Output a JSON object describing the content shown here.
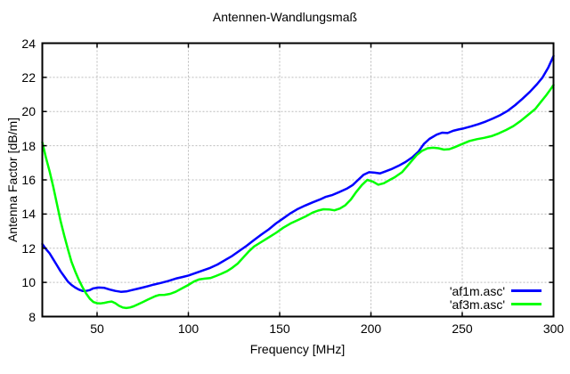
{
  "title": "Antennen-Wandlungsmaß",
  "axes": {
    "x": {
      "label": "Frequency [MHz]",
      "min": 20,
      "max": 300,
      "ticks": [
        50,
        100,
        150,
        200,
        250,
        300
      ]
    },
    "y": {
      "label": "Antenna Factor [dB/m]",
      "min": 8,
      "max": 24,
      "ticks": [
        8,
        10,
        12,
        14,
        16,
        18,
        20,
        22,
        24
      ]
    }
  },
  "legend": [
    {
      "label": "'af1m.asc'",
      "color": "#0000ff"
    },
    {
      "label": "'af3m.asc'",
      "color": "#00ff00"
    }
  ],
  "colors": {
    "background": "#ffffff",
    "grid": "#bcbcbc",
    "border": "#000000",
    "series1": "#0000ff",
    "series2": "#00ff00"
  },
  "chart_data": {
    "type": "line",
    "title": "Antennen-Wandlungsmaß",
    "xlabel": "Frequency [MHz]",
    "ylabel": "Antenna Factor [dB/m]",
    "xlim": [
      20,
      300
    ],
    "ylim": [
      8,
      24
    ],
    "grid": true,
    "legend_position": "bottom-right-inside",
    "series": [
      {
        "name": "'af1m.asc'",
        "color": "#0000ff",
        "points": [
          [
            20,
            12.25
          ],
          [
            22,
            11.95
          ],
          [
            24,
            11.7
          ],
          [
            26,
            11.35
          ],
          [
            28,
            11.0
          ],
          [
            30,
            10.65
          ],
          [
            32,
            10.35
          ],
          [
            34,
            10.05
          ],
          [
            36,
            9.85
          ],
          [
            38,
            9.7
          ],
          [
            40,
            9.58
          ],
          [
            42,
            9.5
          ],
          [
            44,
            9.5
          ],
          [
            46,
            9.55
          ],
          [
            48,
            9.65
          ],
          [
            51,
            9.7
          ],
          [
            54,
            9.68
          ],
          [
            57,
            9.58
          ],
          [
            60,
            9.5
          ],
          [
            63,
            9.45
          ],
          [
            66,
            9.47
          ],
          [
            69,
            9.55
          ],
          [
            72,
            9.62
          ],
          [
            75,
            9.7
          ],
          [
            78,
            9.78
          ],
          [
            81,
            9.87
          ],
          [
            85,
            9.97
          ],
          [
            89,
            10.08
          ],
          [
            93,
            10.22
          ],
          [
            97,
            10.32
          ],
          [
            100,
            10.4
          ],
          [
            104,
            10.55
          ],
          [
            108,
            10.7
          ],
          [
            112,
            10.85
          ],
          [
            116,
            11.05
          ],
          [
            120,
            11.3
          ],
          [
            124,
            11.55
          ],
          [
            128,
            11.85
          ],
          [
            132,
            12.15
          ],
          [
            136,
            12.48
          ],
          [
            140,
            12.8
          ],
          [
            144,
            13.1
          ],
          [
            148,
            13.45
          ],
          [
            152,
            13.75
          ],
          [
            156,
            14.05
          ],
          [
            160,
            14.3
          ],
          [
            164,
            14.5
          ],
          [
            168,
            14.68
          ],
          [
            172,
            14.85
          ],
          [
            175,
            15.0
          ],
          [
            179,
            15.12
          ],
          [
            183,
            15.3
          ],
          [
            187,
            15.5
          ],
          [
            190,
            15.7
          ],
          [
            193,
            16.0
          ],
          [
            196,
            16.3
          ],
          [
            199,
            16.45
          ],
          [
            202,
            16.42
          ],
          [
            205,
            16.38
          ],
          [
            208,
            16.5
          ],
          [
            211,
            16.62
          ],
          [
            215,
            16.82
          ],
          [
            219,
            17.05
          ],
          [
            223,
            17.35
          ],
          [
            226,
            17.65
          ],
          [
            229,
            18.1
          ],
          [
            232,
            18.4
          ],
          [
            236,
            18.65
          ],
          [
            239,
            18.76
          ],
          [
            242,
            18.74
          ],
          [
            245,
            18.87
          ],
          [
            248,
            18.95
          ],
          [
            251,
            19.02
          ],
          [
            255,
            19.14
          ],
          [
            259,
            19.27
          ],
          [
            263,
            19.42
          ],
          [
            267,
            19.6
          ],
          [
            271,
            19.8
          ],
          [
            275,
            20.05
          ],
          [
            279,
            20.38
          ],
          [
            283,
            20.75
          ],
          [
            287,
            21.15
          ],
          [
            291,
            21.6
          ],
          [
            294,
            22.0
          ],
          [
            297,
            22.55
          ],
          [
            300,
            23.25
          ]
        ]
      },
      {
        "name": "'af3m.asc'",
        "color": "#00ff00",
        "points": [
          [
            20,
            18.2
          ],
          [
            22,
            17.3
          ],
          [
            24,
            16.5
          ],
          [
            26,
            15.6
          ],
          [
            28,
            14.6
          ],
          [
            30,
            13.6
          ],
          [
            32,
            12.75
          ],
          [
            34,
            11.95
          ],
          [
            36,
            11.2
          ],
          [
            38,
            10.65
          ],
          [
            40,
            10.15
          ],
          [
            42,
            9.72
          ],
          [
            44,
            9.35
          ],
          [
            46,
            9.05
          ],
          [
            48,
            8.85
          ],
          [
            50,
            8.78
          ],
          [
            52,
            8.77
          ],
          [
            54,
            8.8
          ],
          [
            56,
            8.85
          ],
          [
            58,
            8.88
          ],
          [
            60,
            8.78
          ],
          [
            62,
            8.63
          ],
          [
            64,
            8.53
          ],
          [
            66,
            8.5
          ],
          [
            68,
            8.53
          ],
          [
            70,
            8.6
          ],
          [
            72,
            8.7
          ],
          [
            75,
            8.85
          ],
          [
            78,
            9.0
          ],
          [
            80,
            9.1
          ],
          [
            82,
            9.2
          ],
          [
            84,
            9.26
          ],
          [
            87,
            9.27
          ],
          [
            90,
            9.33
          ],
          [
            93,
            9.45
          ],
          [
            96,
            9.62
          ],
          [
            100,
            9.85
          ],
          [
            103,
            10.05
          ],
          [
            106,
            10.18
          ],
          [
            109,
            10.22
          ],
          [
            112,
            10.25
          ],
          [
            115,
            10.37
          ],
          [
            118,
            10.5
          ],
          [
            121,
            10.65
          ],
          [
            124,
            10.85
          ],
          [
            127,
            11.1
          ],
          [
            130,
            11.45
          ],
          [
            133,
            11.8
          ],
          [
            136,
            12.1
          ],
          [
            139,
            12.3
          ],
          [
            142,
            12.5
          ],
          [
            145,
            12.7
          ],
          [
            148,
            12.9
          ],
          [
            152,
            13.2
          ],
          [
            156,
            13.45
          ],
          [
            160,
            13.65
          ],
          [
            164,
            13.85
          ],
          [
            168,
            14.08
          ],
          [
            171,
            14.2
          ],
          [
            174,
            14.28
          ],
          [
            177,
            14.27
          ],
          [
            180,
            14.22
          ],
          [
            183,
            14.32
          ],
          [
            186,
            14.52
          ],
          [
            189,
            14.85
          ],
          [
            192,
            15.3
          ],
          [
            195,
            15.7
          ],
          [
            198,
            16.0
          ],
          [
            201,
            15.9
          ],
          [
            204,
            15.72
          ],
          [
            207,
            15.8
          ],
          [
            210,
            15.98
          ],
          [
            213,
            16.15
          ],
          [
            217,
            16.45
          ],
          [
            221,
            16.95
          ],
          [
            225,
            17.45
          ],
          [
            228,
            17.7
          ],
          [
            231,
            17.85
          ],
          [
            234,
            17.88
          ],
          [
            237,
            17.85
          ],
          [
            240,
            17.77
          ],
          [
            243,
            17.8
          ],
          [
            246,
            17.92
          ],
          [
            250,
            18.1
          ],
          [
            254,
            18.28
          ],
          [
            258,
            18.38
          ],
          [
            262,
            18.46
          ],
          [
            266,
            18.56
          ],
          [
            270,
            18.72
          ],
          [
            274,
            18.92
          ],
          [
            278,
            19.15
          ],
          [
            282,
            19.45
          ],
          [
            286,
            19.8
          ],
          [
            290,
            20.15
          ],
          [
            293,
            20.55
          ],
          [
            296,
            20.95
          ],
          [
            298,
            21.25
          ],
          [
            300,
            21.55
          ]
        ]
      }
    ]
  }
}
